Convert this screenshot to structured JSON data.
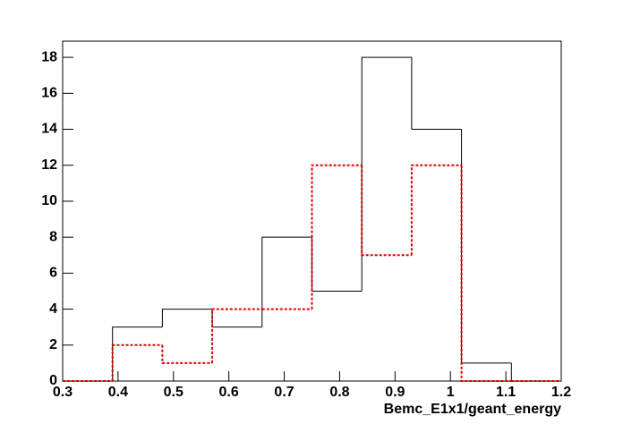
{
  "chart_data": {
    "type": "histogram",
    "x_label": "Bemc_E1x1/geant_energy",
    "bins": [
      0.3,
      0.39,
      0.48,
      0.57,
      0.66,
      0.75,
      0.84,
      0.93,
      1.02,
      1.11,
      1.2
    ],
    "series": [
      {
        "color": "#000000",
        "dash": false,
        "values": [
          0,
          3,
          4,
          3,
          8,
          5,
          18,
          14,
          1,
          0
        ]
      },
      {
        "color": "#dd0000",
        "dash": true,
        "values": [
          0,
          2,
          1,
          4,
          4,
          12,
          7,
          12,
          0,
          0
        ]
      }
    ],
    "xlim": [
      0.3,
      1.2
    ],
    "xticks": [
      0.3,
      0.4,
      0.5,
      0.6,
      0.7,
      0.8,
      0.9,
      1,
      1.1,
      1.2
    ],
    "ylim": [
      0,
      18.9
    ],
    "yticks": [
      0,
      2,
      4,
      6,
      8,
      10,
      12,
      14,
      16,
      18
    ]
  }
}
